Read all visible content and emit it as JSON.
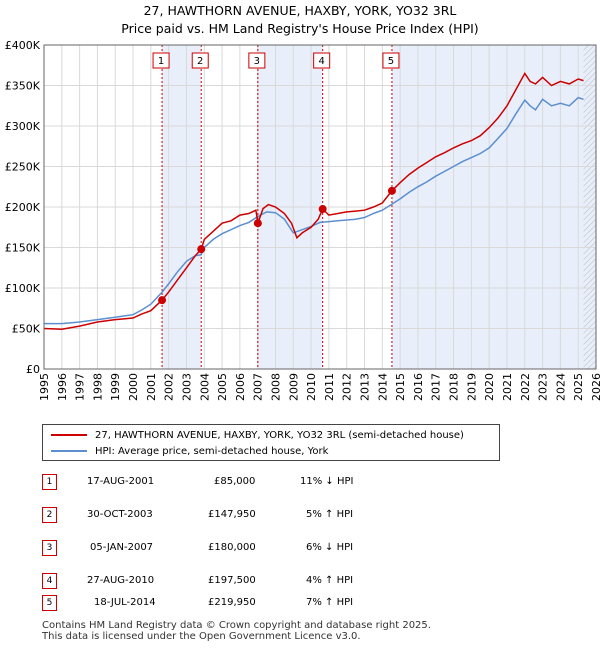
{
  "title_line1": "27, HAWTHORN AVENUE, HAXBY, YORK, YO32 3RL",
  "title_line2": "Price paid vs. HM Land Registry's House Price Index (HPI)",
  "colors": {
    "price": "#cc0000",
    "hpi": "#5b8fd0",
    "shade": "#e8eefa",
    "grid": "#d9d9d9"
  },
  "chart_data": {
    "type": "line",
    "xlim": [
      1995,
      2026
    ],
    "ylim": [
      0,
      400000
    ],
    "y_ticks": [
      {
        "value": 0,
        "label": "£0"
      },
      {
        "value": 50000,
        "label": "£50K"
      },
      {
        "value": 100000,
        "label": "£100K"
      },
      {
        "value": 150000,
        "label": "£150K"
      },
      {
        "value": 200000,
        "label": "£200K"
      },
      {
        "value": 250000,
        "label": "£250K"
      },
      {
        "value": 300000,
        "label": "£300K"
      },
      {
        "value": 350000,
        "label": "£350K"
      },
      {
        "value": 400000,
        "label": "£400K"
      }
    ],
    "x_ticks": [
      "1995",
      "1996",
      "1997",
      "1998",
      "1999",
      "2000",
      "2001",
      "2002",
      "2003",
      "2004",
      "2005",
      "2006",
      "2007",
      "2008",
      "2009",
      "2010",
      "2011",
      "2012",
      "2013",
      "2014",
      "2015",
      "2016",
      "2017",
      "2018",
      "2019",
      "2020",
      "2021",
      "2022",
      "2023",
      "2024",
      "2025",
      "2026"
    ],
    "series": [
      {
        "name": "27, HAWTHORN AVENUE, HAXBY, YORK, YO32 3RL (semi-detached house)",
        "x": [
          1995,
          1996,
          1997,
          1998,
          1999,
          2000,
          2000.5,
          2001,
          2001.63,
          2002,
          2002.5,
          2003,
          2003.5,
          2003.83,
          2004,
          2004.5,
          2005,
          2005.5,
          2006,
          2006.5,
          2006.9,
          2007.01,
          2007.3,
          2007.6,
          2008,
          2008.5,
          2008.9,
          2009.2,
          2009.5,
          2010,
          2010.4,
          2010.65,
          2011,
          2011.5,
          2012,
          2012.5,
          2013,
          2013.5,
          2014,
          2014.54,
          2015,
          2015.5,
          2016,
          2016.5,
          2017,
          2017.5,
          2018,
          2018.5,
          2019,
          2019.5,
          2020,
          2020.5,
          2021,
          2021.5,
          2022,
          2022.3,
          2022.6,
          2023,
          2023.5,
          2024,
          2024.5,
          2025,
          2025.3
        ],
        "y": [
          50000,
          49000,
          53000,
          58000,
          61000,
          63000,
          68000,
          72000,
          85000,
          95000,
          110000,
          125000,
          140000,
          147950,
          160000,
          170000,
          180000,
          183000,
          190000,
          192000,
          196000,
          180000,
          198000,
          203000,
          200000,
          192000,
          180000,
          162000,
          168000,
          175000,
          185000,
          197500,
          190000,
          192000,
          194000,
          195000,
          196000,
          200000,
          205000,
          219950,
          230000,
          240000,
          248000,
          255000,
          262000,
          267000,
          273000,
          278000,
          282000,
          288000,
          298000,
          310000,
          325000,
          345000,
          365000,
          355000,
          352000,
          360000,
          350000,
          355000,
          352000,
          358000,
          356000
        ]
      },
      {
        "name": "HPI: Average price, semi-detached house, York",
        "x": [
          1995,
          1996,
          1997,
          1998,
          1999,
          2000,
          2000.5,
          2001,
          2001.63,
          2002,
          2002.5,
          2003,
          2003.5,
          2003.83,
          2004,
          2004.5,
          2005,
          2005.5,
          2006,
          2006.5,
          2007,
          2007.5,
          2008,
          2008.5,
          2009,
          2009.5,
          2010,
          2010.5,
          2011,
          2011.5,
          2012,
          2012.5,
          2013,
          2013.5,
          2014,
          2014.5,
          2015,
          2015.5,
          2016,
          2016.5,
          2017,
          2017.5,
          2018,
          2018.5,
          2019,
          2019.5,
          2020,
          2020.5,
          2021,
          2021.5,
          2022,
          2022.3,
          2022.6,
          2023,
          2023.5,
          2024,
          2024.5,
          2025,
          2025.3
        ],
        "y": [
          56000,
          56000,
          58000,
          61000,
          64000,
          67000,
          73000,
          80000,
          95000,
          105000,
          120000,
          133000,
          140000,
          141000,
          150000,
          160000,
          167000,
          172000,
          177000,
          181000,
          188000,
          194000,
          193000,
          185000,
          168000,
          172000,
          176000,
          181000,
          182000,
          183000,
          184000,
          185000,
          187000,
          192000,
          196000,
          203000,
          210000,
          218000,
          225000,
          231000,
          238000,
          244000,
          250000,
          256000,
          261000,
          266000,
          273000,
          285000,
          297000,
          315000,
          332000,
          325000,
          320000,
          333000,
          325000,
          328000,
          325000,
          335000,
          333000
        ]
      }
    ],
    "sales": [
      {
        "num": "1",
        "x": 2001.63,
        "y": 85000
      },
      {
        "num": "2",
        "x": 2003.83,
        "y": 147950
      },
      {
        "num": "3",
        "x": 2007.01,
        "y": 180000
      },
      {
        "num": "4",
        "x": 2010.65,
        "y": 197500
      },
      {
        "num": "5",
        "x": 2014.54,
        "y": 219950
      }
    ],
    "shaded_ranges": [
      [
        2001.63,
        2003.83
      ],
      [
        2007.01,
        2010.65
      ],
      [
        2014.54,
        2026
      ]
    ],
    "hatch_start": 2025.3
  },
  "legend": {
    "price_label": "27, HAWTHORN AVENUE, HAXBY, YORK, YO32 3RL (semi-detached house)",
    "hpi_label": "HPI: Average price, semi-detached house, York"
  },
  "sales_table": [
    {
      "num": "1",
      "date": "17-AUG-2001",
      "price": "£85,000",
      "hpi": "11% ↓ HPI"
    },
    {
      "num": "2",
      "date": "30-OCT-2003",
      "price": "£147,950",
      "hpi": "5% ↑ HPI"
    },
    {
      "num": "3",
      "date": "05-JAN-2007",
      "price": "£180,000",
      "hpi": "6% ↓ HPI"
    },
    {
      "num": "4",
      "date": "27-AUG-2010",
      "price": "£197,500",
      "hpi": "4% ↑ HPI"
    },
    {
      "num": "5",
      "date": "18-JUL-2014",
      "price": "£219,950",
      "hpi": "7% ↑ HPI"
    }
  ],
  "footer": {
    "line1": "Contains HM Land Registry data © Crown copyright and database right 2025.",
    "line2": "This data is licensed under the Open Government Licence v3.0."
  }
}
